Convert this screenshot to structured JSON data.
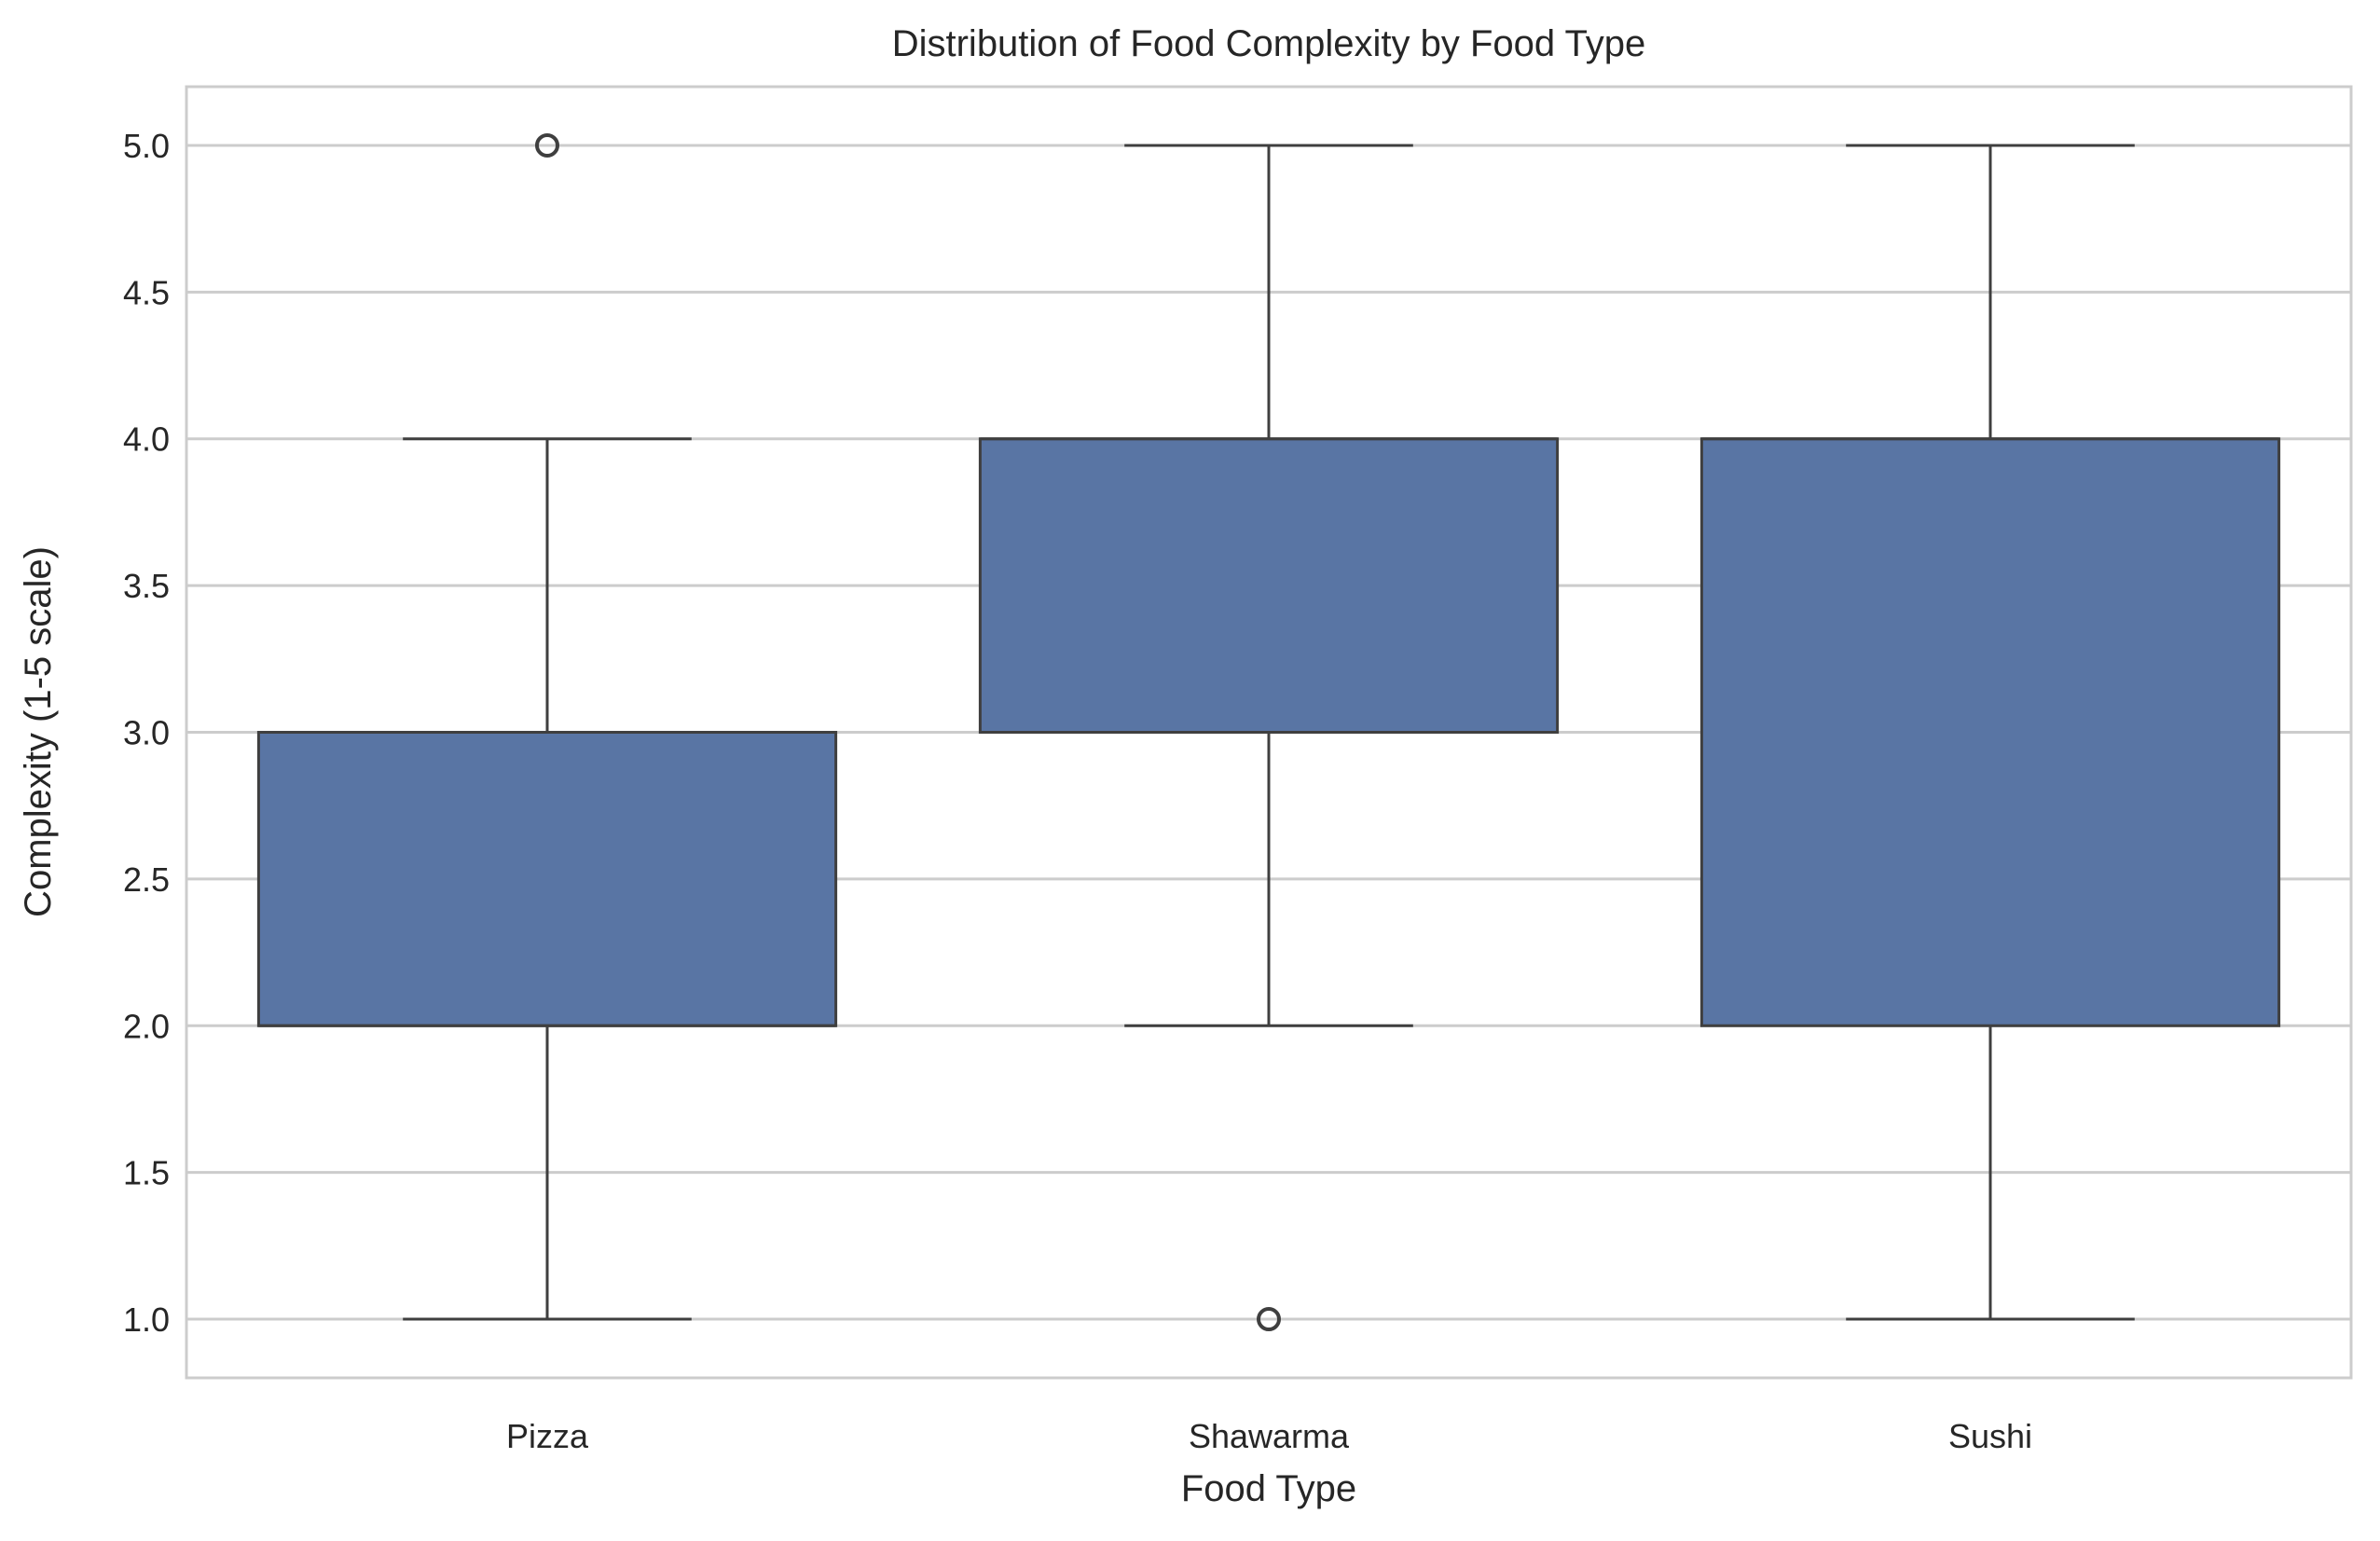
{
  "chart_data": {
    "type": "box",
    "title": "Distribution of Food Complexity by Food Type",
    "xlabel": "Food Type",
    "ylabel": "Complexity (1-5 scale)",
    "categories": [
      "Pizza",
      "Shawarma",
      "Sushi"
    ],
    "boxes": [
      {
        "category": "Pizza",
        "whisker_low": 1,
        "q1": 2,
        "median": 2,
        "q3": 3,
        "whisker_high": 4,
        "outliers": [
          5
        ]
      },
      {
        "category": "Shawarma",
        "whisker_low": 2,
        "q1": 3,
        "median": 4,
        "q3": 4,
        "whisker_high": 5,
        "outliers": [
          1
        ]
      },
      {
        "category": "Sushi",
        "whisker_low": 1,
        "q1": 2,
        "median": 4,
        "q3": 4,
        "whisker_high": 5,
        "outliers": []
      }
    ],
    "ylim": [
      0.8,
      5.2
    ],
    "yticks": [
      1.0,
      1.5,
      2.0,
      2.5,
      3.0,
      3.5,
      4.0,
      4.5,
      5.0
    ],
    "ytick_labels": [
      "1.0",
      "1.5",
      "2.0",
      "2.5",
      "3.0",
      "3.5",
      "4.0",
      "4.5",
      "5.0"
    ],
    "grid": "horizontal",
    "legend": "none",
    "colors": {
      "box_fill": "#5975a4",
      "line": "#3f3f3f",
      "grid": "#cccccc",
      "axes_edge": "#cccccc",
      "text": "#262626"
    }
  }
}
